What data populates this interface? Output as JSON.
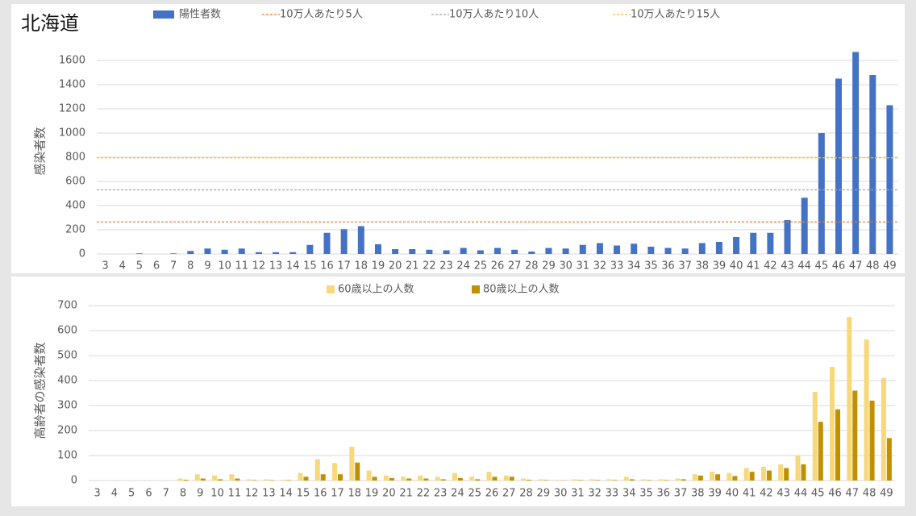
{
  "chart_data": [
    {
      "type": "bar",
      "title": "北海道",
      "ylabel": "感染者数",
      "categories": [
        "3",
        "4",
        "5",
        "6",
        "7",
        "8",
        "9",
        "10",
        "11",
        "12",
        "13",
        "14",
        "15",
        "16",
        "17",
        "18",
        "19",
        "20",
        "21",
        "22",
        "23",
        "24",
        "25",
        "26",
        "27",
        "28",
        "29",
        "30",
        "31",
        "32",
        "33",
        "34",
        "35",
        "36",
        "37",
        "38",
        "39",
        "40",
        "41",
        "42",
        "43",
        "44",
        "45",
        "46",
        "47",
        "48",
        "49"
      ],
      "series": [
        {
          "name": "陽性者数",
          "color": "#4472c4",
          "values": [
            0,
            0,
            5,
            0,
            5,
            25,
            45,
            35,
            45,
            15,
            15,
            15,
            75,
            175,
            205,
            230,
            80,
            40,
            40,
            35,
            30,
            50,
            30,
            50,
            35,
            20,
            50,
            45,
            75,
            90,
            70,
            85,
            60,
            50,
            45,
            90,
            100,
            140,
            175,
            175,
            280,
            465,
            1000,
            1450,
            1670,
            1480,
            1230
          ]
        }
      ],
      "hlines": [
        {
          "name": "10万人あたり5人",
          "value": 265,
          "color": "#ed7d31"
        },
        {
          "name": "10万人あたり10人",
          "value": 530,
          "color": "#a5a5a5"
        },
        {
          "name": "10万人あたり15人",
          "value": 795,
          "color": "#ffc000"
        }
      ],
      "ylim": [
        0,
        1700
      ],
      "yticks": [
        0,
        200,
        400,
        600,
        800,
        1000,
        1200,
        1400,
        1600
      ],
      "grid": true
    },
    {
      "type": "bar",
      "ylabel": "高齢者の感染者数",
      "categories": [
        "3",
        "4",
        "5",
        "6",
        "7",
        "8",
        "9",
        "10",
        "11",
        "12",
        "13",
        "14",
        "15",
        "16",
        "17",
        "18",
        "19",
        "20",
        "21",
        "22",
        "23",
        "24",
        "25",
        "26",
        "27",
        "28",
        "29",
        "30",
        "31",
        "32",
        "33",
        "34",
        "35",
        "36",
        "37",
        "38",
        "39",
        "40",
        "41",
        "42",
        "43",
        "44",
        "45",
        "46",
        "47",
        "48",
        "49"
      ],
      "series": [
        {
          "name": "60歳以上の人数",
          "color": "#f7d87a",
          "values": [
            0,
            0,
            0,
            0,
            0,
            8,
            25,
            20,
            25,
            5,
            5,
            3,
            30,
            85,
            70,
            135,
            40,
            20,
            15,
            20,
            15,
            30,
            15,
            35,
            20,
            8,
            5,
            2,
            5,
            5,
            5,
            15,
            5,
            5,
            8,
            25,
            35,
            30,
            50,
            55,
            65,
            100,
            355,
            455,
            655,
            565,
            410
          ]
        },
        {
          "name": "80歳以上の人数",
          "color": "#bf9000",
          "values": [
            0,
            0,
            0,
            0,
            0,
            3,
            8,
            5,
            8,
            2,
            2,
            2,
            15,
            25,
            25,
            72,
            15,
            10,
            8,
            8,
            5,
            10,
            5,
            15,
            15,
            3,
            2,
            1,
            2,
            2,
            2,
            5,
            2,
            2,
            5,
            20,
            25,
            18,
            35,
            40,
            50,
            65,
            235,
            285,
            360,
            320,
            170
          ]
        }
      ],
      "ylim": [
        0,
        720
      ],
      "yticks": [
        0,
        100,
        200,
        300,
        400,
        500,
        600,
        700
      ],
      "grid": true
    }
  ]
}
